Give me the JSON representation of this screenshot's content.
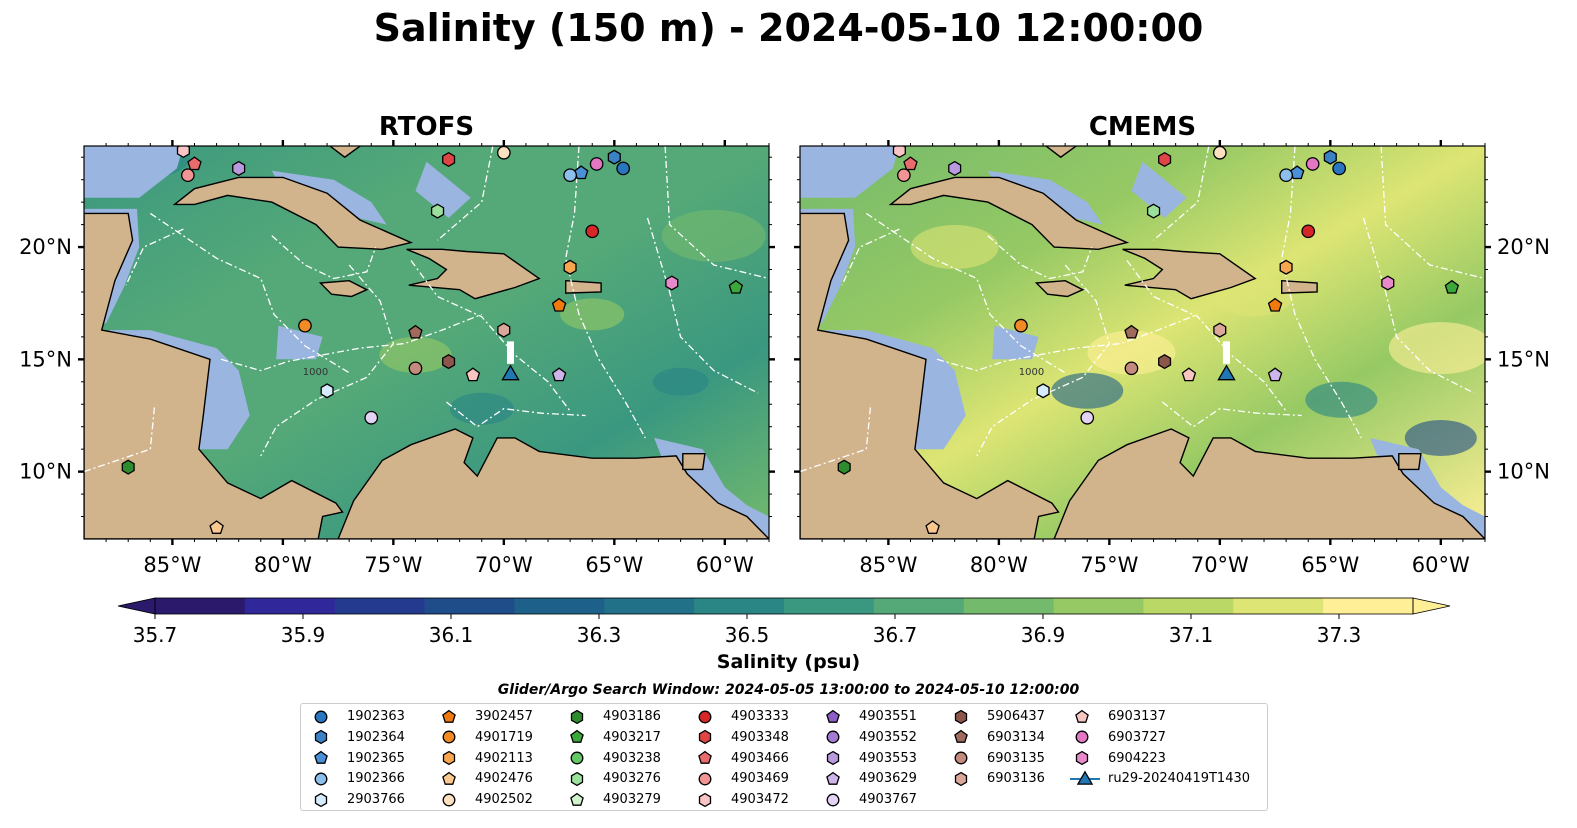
{
  "figure": {
    "title": "Salinity (150 m) - 2024-05-10 12:00:00"
  },
  "panels": [
    {
      "title": "RTOFS",
      "model": "RTOFS"
    },
    {
      "title": "CMEMS",
      "model": "CMEMS"
    }
  ],
  "map": {
    "lon_range": [
      -89,
      -58
    ],
    "lat_range": [
      7,
      24.5
    ],
    "lon_ticks": [
      "85°W",
      "80°W",
      "75°W",
      "70°W",
      "65°W",
      "60°W"
    ],
    "lat_ticks": [
      "20°N",
      "15°N",
      "10°N"
    ],
    "contour_labels": [
      "1000",
      "1000"
    ],
    "land_color": "#d2b48c",
    "shallow_color": "#9ab5e0",
    "outline_color": "#000000",
    "eez_line_color": "#ffffff"
  },
  "colorbar": {
    "label": "Salinity (psu)",
    "tick_labels": [
      "35.7",
      "35.9",
      "36.1",
      "36.3",
      "36.5",
      "36.7",
      "36.9",
      "37.1",
      "37.3"
    ],
    "min": 35.7,
    "max": 37.4,
    "step": 0.1,
    "extend": "both",
    "colors": [
      "#2b1a6b",
      "#30279a",
      "#233a8e",
      "#1f4d8a",
      "#1d608a",
      "#217289",
      "#2a8585",
      "#3a9880",
      "#55a978",
      "#74ba6c",
      "#96c964",
      "#b9d866",
      "#dde574",
      "#fff097"
    ]
  },
  "legend": {
    "title": "Glider/Argo Search Window: 2024-05-05 13:00:00 to 2024-05-10 12:00:00",
    "columns": [
      [
        {
          "label": "1902363",
          "marker": "circle",
          "color": "#2a75c0"
        },
        {
          "label": "1902364",
          "marker": "hexagon",
          "color": "#3b82c4"
        },
        {
          "label": "1902365",
          "marker": "pentagon",
          "color": "#4a90d6"
        },
        {
          "label": "1902366",
          "marker": "circle",
          "color": "#8cbfea"
        },
        {
          "label": "2903766",
          "marker": "hexagon",
          "color": "#d6ebfb"
        }
      ],
      [
        {
          "label": "3902457",
          "marker": "pentagon",
          "color": "#f07a10"
        },
        {
          "label": "4901719",
          "marker": "circle",
          "color": "#f28a25"
        },
        {
          "label": "4902113",
          "marker": "hexagon",
          "color": "#f7a650"
        },
        {
          "label": "4902476",
          "marker": "pentagon",
          "color": "#fbc990"
        },
        {
          "label": "4902502",
          "marker": "circle",
          "color": "#fde0c0"
        }
      ],
      [
        {
          "label": "4903186",
          "marker": "hexagon",
          "color": "#2e8b2e"
        },
        {
          "label": "4903217",
          "marker": "pentagon",
          "color": "#3ca83c"
        },
        {
          "label": "4903238",
          "marker": "circle",
          "color": "#63c763"
        },
        {
          "label": "4903276",
          "marker": "hexagon",
          "color": "#9be09b"
        },
        {
          "label": "4903279",
          "marker": "pentagon",
          "color": "#d0f5cd"
        }
      ],
      [
        {
          "label": "4903333",
          "marker": "circle",
          "color": "#d62728"
        },
        {
          "label": "4903348",
          "marker": "hexagon",
          "color": "#e04545"
        },
        {
          "label": "4903466",
          "marker": "pentagon",
          "color": "#ea6b6b"
        },
        {
          "label": "4903469",
          "marker": "circle",
          "color": "#f29494"
        },
        {
          "label": "4903472",
          "marker": "hexagon",
          "color": "#f8c4c4"
        }
      ],
      [
        {
          "label": "4903551",
          "marker": "pentagon",
          "color": "#8e5ec7"
        },
        {
          "label": "4903552",
          "marker": "circle",
          "color": "#a47ad2"
        },
        {
          "label": "4903553",
          "marker": "hexagon",
          "color": "#b99ade"
        },
        {
          "label": "4903629",
          "marker": "pentagon",
          "color": "#cdb5ea"
        },
        {
          "label": "4903767",
          "marker": "circle",
          "color": "#e2d2f5"
        }
      ],
      [
        {
          "label": "5906437",
          "marker": "hexagon",
          "color": "#8c564b"
        },
        {
          "label": "6903134",
          "marker": "pentagon",
          "color": "#a06a5c"
        },
        {
          "label": "6903135",
          "marker": "circle",
          "color": "#c48a7d"
        },
        {
          "label": "6903136",
          "marker": "hexagon",
          "color": "#dba79b"
        }
      ],
      [
        {
          "label": "6903137",
          "marker": "pentagon",
          "color": "#f7c6c0"
        },
        {
          "label": "6903727",
          "marker": "circle",
          "color": "#e377c2"
        },
        {
          "label": "6904223",
          "marker": "hexagon",
          "color": "#e889cc"
        },
        {
          "label": "ru29-20240419T1430",
          "marker": "triangle-line",
          "color": "#1f77b4"
        }
      ]
    ]
  },
  "floats": [
    {
      "id": "1902363",
      "lon": -64.6,
      "lat": 23.5,
      "marker": "circle",
      "color": "#2a75c0"
    },
    {
      "id": "1902364",
      "lon": -65.0,
      "lat": 24.0,
      "marker": "hexagon",
      "color": "#3b82c4"
    },
    {
      "id": "1902365",
      "lon": -66.5,
      "lat": 23.3,
      "marker": "pentagon",
      "color": "#4a90d6"
    },
    {
      "id": "1902366",
      "lon": -67.0,
      "lat": 23.2,
      "marker": "circle",
      "color": "#8cbfea"
    },
    {
      "id": "2903766",
      "lon": -78.0,
      "lat": 13.6,
      "marker": "hexagon",
      "color": "#d6ebfb"
    },
    {
      "id": "3902457",
      "lon": -67.5,
      "lat": 17.4,
      "marker": "pentagon",
      "color": "#f07a10"
    },
    {
      "id": "4901719",
      "lon": -79.0,
      "lat": 16.5,
      "marker": "circle",
      "color": "#f28a25"
    },
    {
      "id": "4902113",
      "lon": -67.0,
      "lat": 19.1,
      "marker": "hexagon",
      "color": "#f7a650"
    },
    {
      "id": "4902476",
      "lon": -83.0,
      "lat": 7.5,
      "marker": "pentagon",
      "color": "#fbc990"
    },
    {
      "id": "4902502",
      "lon": -70.0,
      "lat": 24.2,
      "marker": "circle",
      "color": "#fde0c0"
    },
    {
      "id": "4903186",
      "lon": -87.0,
      "lat": 10.2,
      "marker": "hexagon",
      "color": "#2e8b2e"
    },
    {
      "id": "4903217",
      "lon": -59.5,
      "lat": 18.2,
      "marker": "pentagon",
      "color": "#3ca83c"
    },
    {
      "id": "4903276",
      "lon": -73.0,
      "lat": 21.6,
      "marker": "hexagon",
      "color": "#9be09b"
    },
    {
      "id": "4903333",
      "lon": -66.0,
      "lat": 20.7,
      "marker": "circle",
      "color": "#d62728"
    },
    {
      "id": "4903348",
      "lon": -72.5,
      "lat": 23.9,
      "marker": "hexagon",
      "color": "#e04545"
    },
    {
      "id": "4903466",
      "lon": -84.0,
      "lat": 23.7,
      "marker": "pentagon",
      "color": "#ea6b6b"
    },
    {
      "id": "4903469",
      "lon": -84.3,
      "lat": 23.2,
      "marker": "circle",
      "color": "#f29494"
    },
    {
      "id": "4903472",
      "lon": -84.5,
      "lat": 24.3,
      "marker": "hexagon",
      "color": "#f8c4c4"
    },
    {
      "id": "4903553",
      "lon": -82.0,
      "lat": 23.5,
      "marker": "hexagon",
      "color": "#b99ade"
    },
    {
      "id": "4903629",
      "lon": -67.5,
      "lat": 14.3,
      "marker": "pentagon",
      "color": "#cdb5ea"
    },
    {
      "id": "4903767",
      "lon": -76.0,
      "lat": 12.4,
      "marker": "circle",
      "color": "#e2d2f5"
    },
    {
      "id": "5906437",
      "lon": -72.5,
      "lat": 14.9,
      "marker": "hexagon",
      "color": "#8c564b"
    },
    {
      "id": "6903134",
      "lon": -74.0,
      "lat": 16.2,
      "marker": "pentagon",
      "color": "#a06a5c"
    },
    {
      "id": "6903135",
      "lon": -74.0,
      "lat": 14.6,
      "marker": "circle",
      "color": "#c48a7d"
    },
    {
      "id": "6903136",
      "lon": -70.0,
      "lat": 16.3,
      "marker": "hexagon",
      "color": "#dba79b"
    },
    {
      "id": "6903137",
      "lon": -71.4,
      "lat": 14.3,
      "marker": "pentagon",
      "color": "#f7c6c0"
    },
    {
      "id": "6903727",
      "lon": -65.8,
      "lat": 23.7,
      "marker": "circle",
      "color": "#e377c2"
    },
    {
      "id": "6904223",
      "lon": -62.4,
      "lat": 18.4,
      "marker": "hexagon",
      "color": "#e889cc"
    }
  ],
  "glider": {
    "id": "ru29-20240419T1430",
    "track": [
      [
        -69.7,
        15.8
      ],
      [
        -69.7,
        14.8
      ]
    ],
    "lon": -69.7,
    "lat": 14.3,
    "color": "#1f77b4"
  }
}
